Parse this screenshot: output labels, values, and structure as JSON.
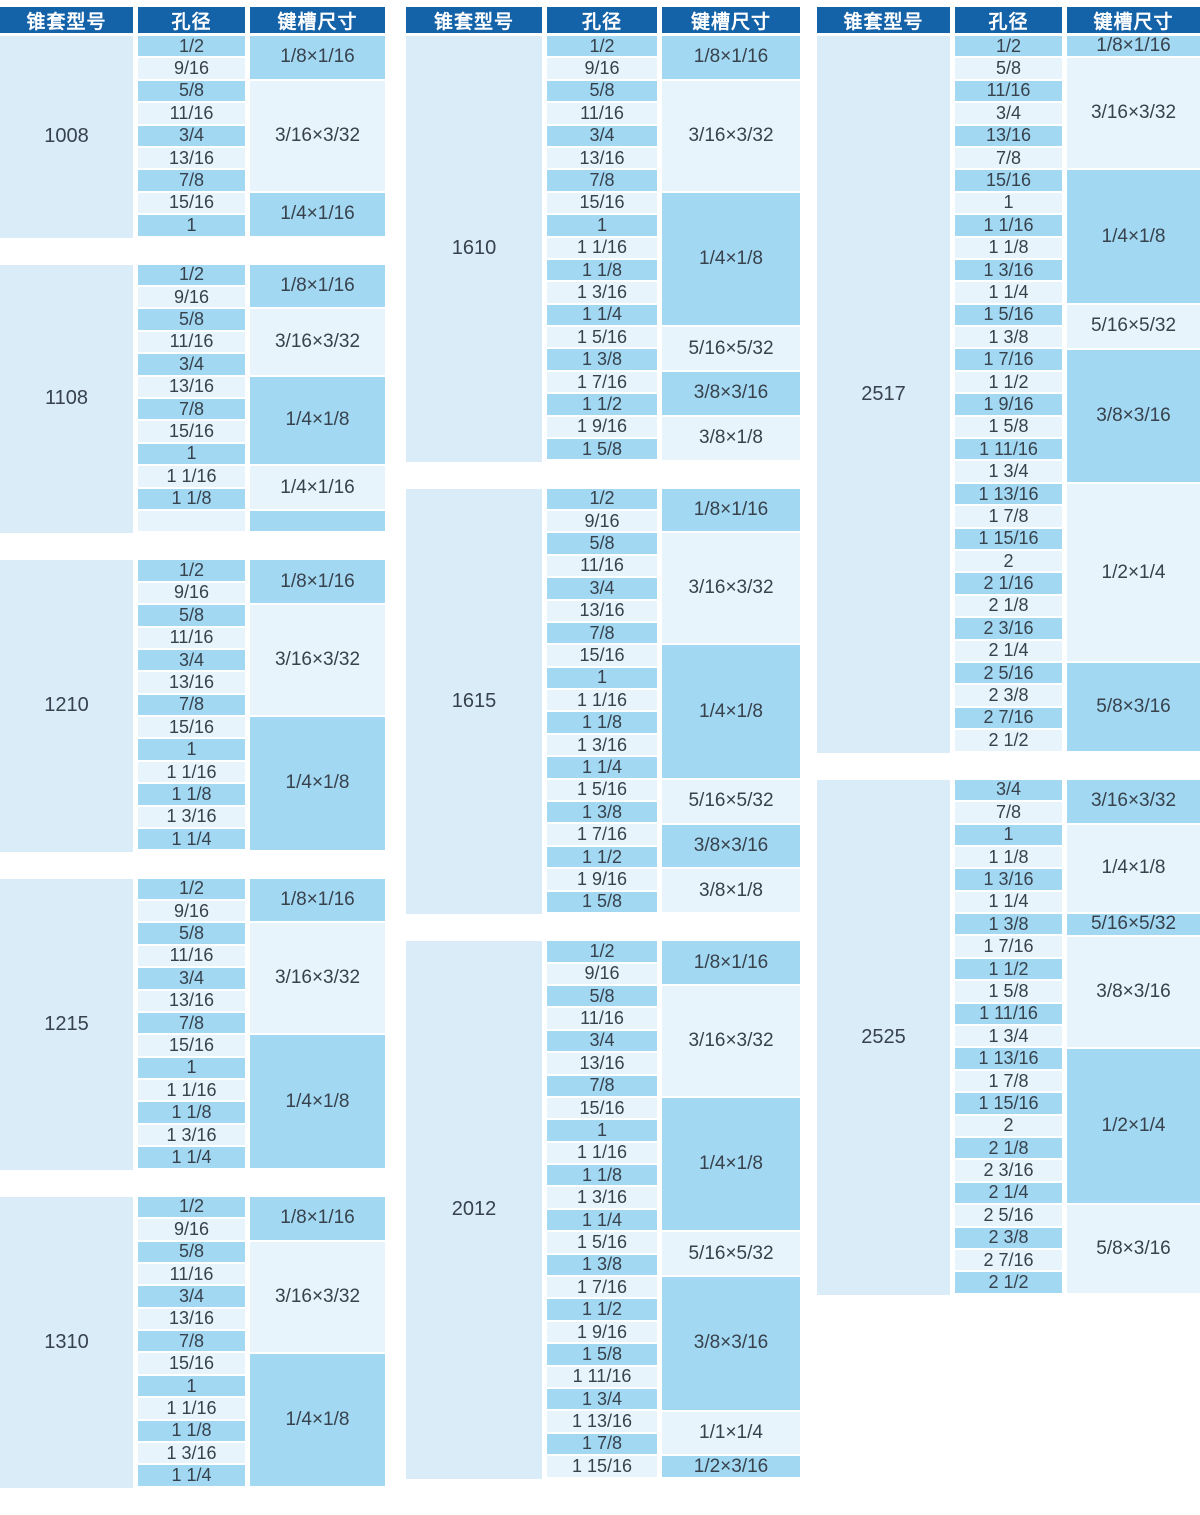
{
  "colors": {
    "header_bg": "#1462a8",
    "header_text": "#ffffff",
    "row_dark": "#a3d8f3",
    "row_light": "#e8f4fc",
    "model_bg": "#d9ecf8",
    "text": "#37424c",
    "page_bg": "#ffffff"
  },
  "header": {
    "model": "锥套型号",
    "bore": "孔径",
    "keyway": "键槽尺寸"
  },
  "groups": [
    {
      "tables": [
        {
          "model": "1008",
          "bores": [
            "1/2",
            "9/16",
            "5/8",
            "11/16",
            "3/4",
            "13/16",
            "7/8",
            "15/16",
            "1"
          ],
          "keyways": [
            {
              "label": "1/8×1/16",
              "span": 2
            },
            {
              "label": "3/16×3/32",
              "span": 5
            },
            {
              "label": "1/4×1/16",
              "span": 2
            }
          ]
        },
        {
          "model": "1108",
          "bores": [
            "1/2",
            "9/16",
            "5/8",
            "11/16",
            "3/4",
            "13/16",
            "7/8",
            "15/16",
            "1",
            "1 1/16",
            "1 1/8",
            ""
          ],
          "keyways": [
            {
              "label": "1/8×1/16",
              "span": 2
            },
            {
              "label": "3/16×3/32",
              "span": 3
            },
            {
              "label": "1/4×1/8",
              "span": 4
            },
            {
              "label": "1/4×1/16",
              "span": 2
            },
            {
              "label": "",
              "span": 1
            }
          ]
        },
        {
          "model": "1210",
          "bores": [
            "1/2",
            "9/16",
            "5/8",
            "11/16",
            "3/4",
            "13/16",
            "7/8",
            "15/16",
            "1",
            "1 1/16",
            "1 1/8",
            "1 3/16",
            "1 1/4"
          ],
          "keyways": [
            {
              "label": "1/8×1/16",
              "span": 2
            },
            {
              "label": "3/16×3/32",
              "span": 5
            },
            {
              "label": "1/4×1/8",
              "span": 6
            }
          ]
        },
        {
          "model": "1215",
          "bores": [
            "1/2",
            "9/16",
            "5/8",
            "11/16",
            "3/4",
            "13/16",
            "7/8",
            "15/16",
            "1",
            "1 1/16",
            "1 1/8",
            "1 3/16",
            "1 1/4"
          ],
          "keyways": [
            {
              "label": "1/8×1/16",
              "span": 2
            },
            {
              "label": "3/16×3/32",
              "span": 5
            },
            {
              "label": "1/4×1/8",
              "span": 6
            }
          ]
        },
        {
          "model": "1310",
          "bores": [
            "1/2",
            "9/16",
            "5/8",
            "11/16",
            "3/4",
            "13/16",
            "7/8",
            "15/16",
            "1",
            "1 1/16",
            "1 1/8",
            "1 3/16",
            "1 1/4"
          ],
          "keyways": [
            {
              "label": "1/8×1/16",
              "span": 2
            },
            {
              "label": "3/16×3/32",
              "span": 5
            },
            {
              "label": "1/4×1/8",
              "span": 6
            }
          ]
        }
      ]
    },
    {
      "tables": [
        {
          "model": "1610",
          "bores": [
            "1/2",
            "9/16",
            "5/8",
            "11/16",
            "3/4",
            "13/16",
            "7/8",
            "15/16",
            "1",
            "1 1/16",
            "1 1/8",
            "1 3/16",
            "1 1/4",
            "1 5/16",
            "1 3/8",
            "1 7/16",
            "1 1/2",
            "1 9/16",
            "1 5/8"
          ],
          "keyways": [
            {
              "label": "1/8×1/16",
              "span": 2
            },
            {
              "label": "3/16×3/32",
              "span": 5
            },
            {
              "label": "1/4×1/8",
              "span": 6
            },
            {
              "label": "5/16×5/32",
              "span": 2
            },
            {
              "label": "3/8×3/16",
              "span": 2
            },
            {
              "label": "3/8×1/8",
              "span": 2
            }
          ]
        },
        {
          "model": "1615",
          "bores": [
            "1/2",
            "9/16",
            "5/8",
            "11/16",
            "3/4",
            "13/16",
            "7/8",
            "15/16",
            "1",
            "1 1/16",
            "1 1/8",
            "1 3/16",
            "1 1/4",
            "1 5/16",
            "1 3/8",
            "1 7/16",
            "1 1/2",
            "1 9/16",
            "1 5/8"
          ],
          "keyways": [
            {
              "label": "1/8×1/16",
              "span": 2
            },
            {
              "label": "3/16×3/32",
              "span": 5
            },
            {
              "label": "1/4×1/8",
              "span": 6
            },
            {
              "label": "5/16×5/32",
              "span": 2
            },
            {
              "label": "3/8×3/16",
              "span": 2
            },
            {
              "label": "3/8×1/8",
              "span": 2
            }
          ]
        },
        {
          "model": "2012",
          "bores": [
            "1/2",
            "9/16",
            "5/8",
            "11/16",
            "3/4",
            "13/16",
            "7/8",
            "15/16",
            "1",
            "1 1/16",
            "1 1/8",
            "1 3/16",
            "1 1/4",
            "1 5/16",
            "1 3/8",
            "1 7/16",
            "1 1/2",
            "1 9/16",
            "1 5/8",
            "1 11/16",
            "1 3/4",
            "1 13/16",
            "1 7/8",
            "1 15/16"
          ],
          "keyways": [
            {
              "label": "1/8×1/16",
              "span": 2
            },
            {
              "label": "3/16×3/32",
              "span": 5
            },
            {
              "label": "1/4×1/8",
              "span": 6
            },
            {
              "label": "5/16×5/32",
              "span": 2
            },
            {
              "label": "3/8×3/16",
              "span": 6
            },
            {
              "label": "1/1×1/4",
              "span": 2
            },
            {
              "label": "1/2×3/16",
              "span": 1
            }
          ]
        }
      ]
    },
    {
      "tables": [
        {
          "model": "2517",
          "bores": [
            "1/2",
            "5/8",
            "11/16",
            "3/4",
            "13/16",
            "7/8",
            "15/16",
            "1",
            "1 1/16",
            "1 1/8",
            "1 3/16",
            "1 1/4",
            "1 5/16",
            "1 3/8",
            "1 7/16",
            "1 1/2",
            "1 9/16",
            "1 5/8",
            "1 11/16",
            "1 3/4",
            "1 13/16",
            "1 7/8",
            "1 15/16",
            "2",
            "2 1/16",
            "2 1/8",
            "2 3/16",
            "2 1/4",
            "2 5/16",
            "2 3/8",
            "2 7/16",
            "2 1/2"
          ],
          "keyways": [
            {
              "label": "1/8×1/16",
              "span": 1
            },
            {
              "label": "3/16×3/32",
              "span": 5
            },
            {
              "label": "1/4×1/8",
              "span": 6
            },
            {
              "label": "5/16×5/32",
              "span": 2
            },
            {
              "label": "3/8×3/16",
              "span": 6
            },
            {
              "label": "1/2×1/4",
              "span": 8
            },
            {
              "label": "5/8×3/16",
              "span": 4
            }
          ]
        },
        {
          "model": "2525",
          "bores": [
            "3/4",
            "7/8",
            "1",
            "1 1/8",
            "1 3/16",
            "1 1/4",
            "1 3/8",
            "1 7/16",
            "1 1/2",
            "1 5/8",
            "1 11/16",
            "1 3/4",
            "1 13/16",
            "1 7/8",
            "1 15/16",
            "2",
            "2 1/8",
            "2 3/16",
            "2 1/4",
            "2 5/16",
            "2 3/8",
            "2 7/16",
            "2 1/2"
          ],
          "keyways": [
            {
              "label": "3/16×3/32",
              "span": 2
            },
            {
              "label": "1/4×1/8",
              "span": 4
            },
            {
              "label": "5/16×5/32",
              "span": 1
            },
            {
              "label": "3/8×3/16",
              "span": 5
            },
            {
              "label": "1/2×1/4",
              "span": 7
            },
            {
              "label": "5/8×3/16",
              "span": 4
            }
          ]
        }
      ]
    }
  ]
}
